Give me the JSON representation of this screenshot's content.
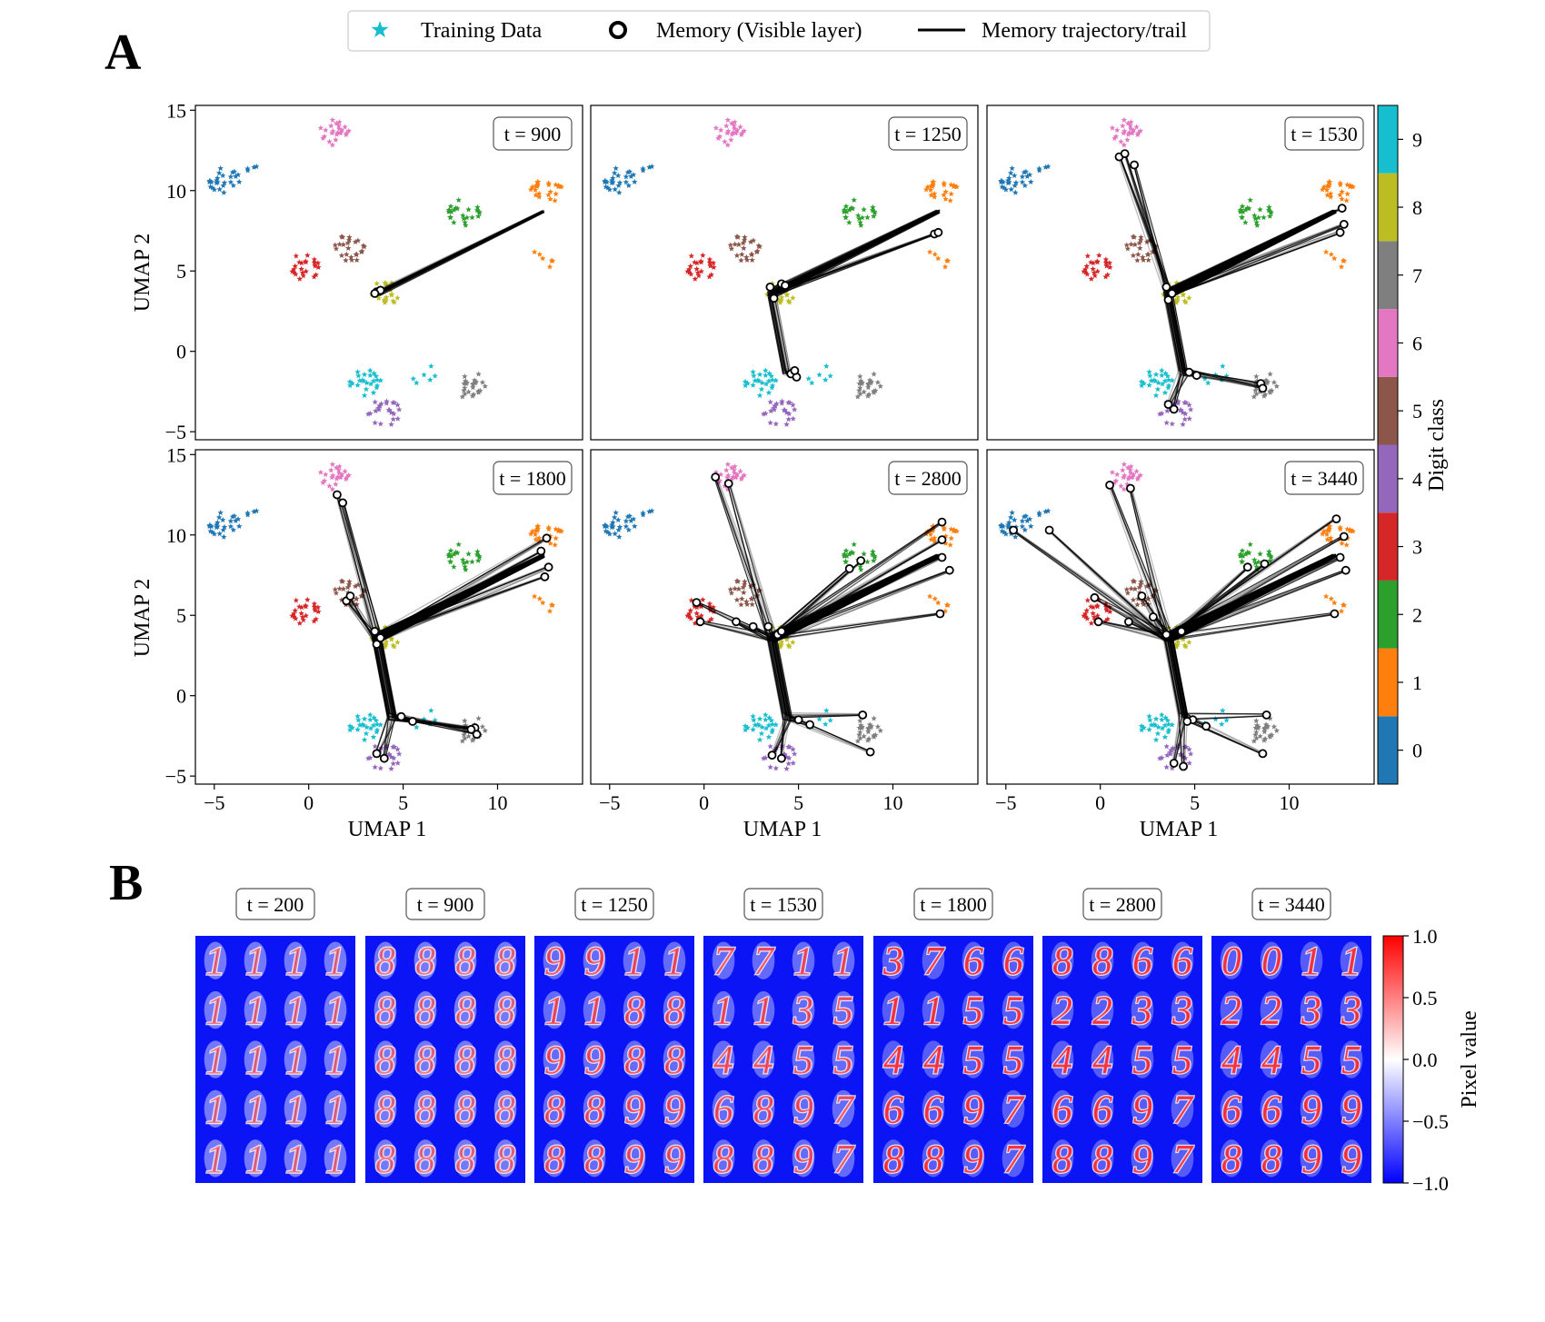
{
  "panel_labels": [
    "A",
    "B"
  ],
  "legend": {
    "items": [
      {
        "label": "Training Data",
        "marker": "star",
        "color": "#17becf"
      },
      {
        "label": "Memory (Visible layer)",
        "marker": "open-circle",
        "color": "#000000"
      },
      {
        "label": "Memory trajectory/trail",
        "marker": "line",
        "color": "#000000"
      }
    ]
  },
  "colors": {
    "digit": [
      "#1f77b4",
      "#ff7f0e",
      "#2ca02c",
      "#d62728",
      "#9467bd",
      "#8c564b",
      "#e377c2",
      "#7f7f7f",
      "#bcbd22",
      "#17becf"
    ],
    "pixel_scale": {
      "low": "#0000ff",
      "mid": "#ffffff",
      "high": "#ff0000"
    }
  },
  "chart_data": [
    {
      "type": "scatter",
      "panel": "A",
      "xlabel": "UMAP 1",
      "ylabel": "UMAP 2",
      "xlim": [
        -6,
        14.5
      ],
      "ylim": [
        -5.5,
        15.3
      ],
      "xticks": [
        -5,
        0,
        5,
        10
      ],
      "xtick_labels": [
        "−5",
        "0",
        "5",
        "10"
      ],
      "yticks": [
        -5,
        0,
        5,
        10,
        15
      ],
      "ytick_labels": [
        "−5",
        "0",
        "5",
        "10",
        "15"
      ],
      "subplot_labels": [
        "t = 900",
        "t = 1250",
        "t = 1530",
        "t = 1800",
        "t = 2800",
        "t = 3440"
      ],
      "clusters": [
        {
          "digit": 0,
          "center": [
            -4.2,
            10.5
          ],
          "groups": [
            [
              -4.5,
              10.6
            ],
            [
              -3,
              10.9
            ]
          ]
        },
        {
          "digit": 1,
          "center": [
            12.6,
            8.5
          ],
          "groups": [
            [
              12.6,
              10
            ],
            [
              12.5,
              6
            ]
          ]
        },
        {
          "digit": 2,
          "center": [
            7.8,
            8.6
          ],
          "groups": [
            [
              8.2,
              8.6
            ]
          ]
        },
        {
          "digit": 3,
          "center": [
            0,
            5
          ],
          "groups": [
            [
              -0.3,
              5.2
            ]
          ]
        },
        {
          "digit": 4,
          "center": [
            4,
            -3.8
          ],
          "groups": [
            [
              4.0,
              -3.8
            ]
          ]
        },
        {
          "digit": 5,
          "center": [
            2,
            6.5
          ],
          "groups": [
            [
              2.1,
              6.4
            ]
          ]
        },
        {
          "digit": 6,
          "center": [
            1.3,
            13.5
          ],
          "groups": [
            [
              1.3,
              13.6
            ]
          ]
        },
        {
          "digit": 7,
          "center": [
            8.6,
            -2
          ],
          "groups": [
            [
              8.7,
              -2.2
            ]
          ]
        },
        {
          "digit": 8,
          "center": [
            4,
            3.8
          ],
          "groups": [
            [
              4.0,
              3.7
            ]
          ]
        },
        {
          "digit": 9,
          "center": [
            4.5,
            -1.9
          ],
          "groups": [
            [
              3.0,
              -2.0
            ],
            [
              5.9,
              -1.5
            ]
          ]
        }
      ],
      "memory_endpoints": [
        [
          [
            3.6,
            3.7
          ],
          [
            3.8,
            3.8
          ],
          [
            3.5,
            3.6
          ]
        ],
        [
          [
            3.5,
            4.0
          ],
          [
            3.7,
            3.3
          ],
          [
            4.1,
            4.2
          ],
          [
            4.6,
            -1.4
          ],
          [
            4.9,
            -1.6
          ],
          [
            12.2,
            7.3
          ],
          [
            12.4,
            7.4
          ],
          [
            4.3,
            4.1
          ],
          [
            4.8,
            -1.2
          ]
        ],
        [
          [
            3.5,
            4.0
          ],
          [
            3.6,
            3.2
          ],
          [
            4.7,
            -1.3
          ],
          [
            5.1,
            -1.5
          ],
          [
            8.5,
            -2.0
          ],
          [
            8.6,
            -2.3
          ],
          [
            3.6,
            -3.3
          ],
          [
            3.9,
            -3.6
          ],
          [
            1.0,
            12.1
          ],
          [
            1.3,
            12.3
          ],
          [
            12.8,
            8.9
          ],
          [
            12.7,
            7.4
          ],
          [
            12.9,
            7.9
          ],
          [
            3.8,
            3.6
          ],
          [
            1.8,
            11.6
          ]
        ],
        [
          [
            3.5,
            4.0
          ],
          [
            3.6,
            3.2
          ],
          [
            4.9,
            -1.3
          ],
          [
            5.5,
            -1.6
          ],
          [
            8.8,
            -2.0
          ],
          [
            8.9,
            -2.4
          ],
          [
            3.6,
            -3.6
          ],
          [
            4.0,
            -3.9
          ],
          [
            1.5,
            12.5
          ],
          [
            1.8,
            12.0
          ],
          [
            12.6,
            9.8
          ],
          [
            12.5,
            7.4
          ],
          [
            12.7,
            8.0
          ],
          [
            2.0,
            5.9
          ],
          [
            2.2,
            6.2
          ],
          [
            3.8,
            3.6
          ],
          [
            12.3,
            9.0
          ],
          [
            8.6,
            -2.1
          ]
        ],
        [
          [
            3.4,
            4.3
          ],
          [
            3.9,
            3.8
          ],
          [
            5.0,
            -1.5
          ],
          [
            5.6,
            -1.8
          ],
          [
            8.4,
            -1.2
          ],
          [
            8.8,
            -3.5
          ],
          [
            3.6,
            -3.7
          ],
          [
            4.1,
            -3.9
          ],
          [
            0.6,
            13.6
          ],
          [
            1.3,
            13.2
          ],
          [
            12.6,
            10.8
          ],
          [
            12.6,
            8.6
          ],
          [
            12.5,
            5.1
          ],
          [
            13.0,
            7.8
          ],
          [
            1.7,
            4.6
          ],
          [
            2.6,
            4.3
          ],
          [
            -0.4,
            5.8
          ],
          [
            -0.2,
            4.6
          ],
          [
            8.3,
            8.4
          ],
          [
            7.7,
            7.9
          ],
          [
            12.6,
            9.7
          ],
          [
            4.1,
            4.0
          ]
        ],
        [
          [
            3.5,
            3.8
          ],
          [
            4.9,
            -1.5
          ],
          [
            5.6,
            -1.9
          ],
          [
            8.8,
            -1.2
          ],
          [
            8.6,
            -3.6
          ],
          [
            3.9,
            -4.2
          ],
          [
            4.4,
            -4.4
          ],
          [
            0.5,
            13.1
          ],
          [
            1.6,
            12.9
          ],
          [
            12.5,
            11.0
          ],
          [
            12.7,
            8.6
          ],
          [
            12.4,
            5.1
          ],
          [
            13.0,
            7.8
          ],
          [
            1.5,
            4.6
          ],
          [
            2.8,
            4.9
          ],
          [
            -0.3,
            6.1
          ],
          [
            -0.1,
            4.6
          ],
          [
            8.7,
            8.2
          ],
          [
            7.8,
            8.0
          ],
          [
            12.9,
            9.9
          ],
          [
            -2.7,
            10.3
          ],
          [
            -4.6,
            10.3
          ],
          [
            4.3,
            4.0
          ],
          [
            2.2,
            6.2
          ],
          [
            4.6,
            -1.6
          ]
        ]
      ],
      "source_points": [
        [
          12.4,
          8.7
        ],
        [
          3.6,
          3.6
        ]
      ]
    },
    {
      "type": "heatmap",
      "panel": "B",
      "subplot_labels": [
        "t = 200",
        "t = 900",
        "t = 1250",
        "t = 1530",
        "t = 1800",
        "t = 2800",
        "t = 3440"
      ],
      "grid": {
        "rows": 5,
        "cols": 4
      },
      "digits": [
        [
          [
            1,
            1,
            1,
            1
          ],
          [
            1,
            1,
            1,
            1
          ],
          [
            1,
            1,
            1,
            1
          ],
          [
            1,
            1,
            1,
            1
          ],
          [
            1,
            1,
            1,
            1
          ]
        ],
        [
          [
            8,
            8,
            8,
            8
          ],
          [
            8,
            8,
            8,
            8
          ],
          [
            8,
            8,
            8,
            8
          ],
          [
            8,
            8,
            8,
            8
          ],
          [
            8,
            8,
            8,
            8
          ]
        ],
        [
          [
            9,
            9,
            1,
            1
          ],
          [
            1,
            1,
            8,
            8
          ],
          [
            9,
            9,
            8,
            8
          ],
          [
            8,
            8,
            9,
            9
          ],
          [
            8,
            8,
            9,
            9
          ]
        ],
        [
          [
            7,
            7,
            1,
            1
          ],
          [
            1,
            1,
            3,
            5
          ],
          [
            4,
            4,
            5,
            5
          ],
          [
            6,
            8,
            9,
            7
          ],
          [
            8,
            8,
            9,
            7
          ]
        ],
        [
          [
            3,
            7,
            6,
            6
          ],
          [
            1,
            1,
            5,
            5
          ],
          [
            4,
            4,
            5,
            5
          ],
          [
            6,
            6,
            9,
            7
          ],
          [
            8,
            8,
            9,
            7
          ]
        ],
        [
          [
            8,
            8,
            6,
            6
          ],
          [
            2,
            2,
            3,
            3
          ],
          [
            4,
            4,
            5,
            5
          ],
          [
            6,
            6,
            9,
            7
          ],
          [
            8,
            8,
            9,
            7
          ]
        ],
        [
          [
            0,
            0,
            1,
            1
          ],
          [
            2,
            2,
            3,
            3
          ],
          [
            4,
            4,
            5,
            5
          ],
          [
            6,
            6,
            9,
            9
          ],
          [
            8,
            8,
            9,
            9
          ]
        ]
      ],
      "colorbar_label": "Pixel value",
      "colorbar_ticks": [
        "1.0",
        "0.5",
        "0.0",
        "−0.5",
        "−1.0"
      ],
      "colorbar_range": [
        -1.0,
        1.0
      ]
    }
  ],
  "digit_colorbar": {
    "label": "Digit class",
    "ticks": [
      "0",
      "1",
      "2",
      "3",
      "4",
      "5",
      "6",
      "7",
      "8",
      "9"
    ]
  }
}
